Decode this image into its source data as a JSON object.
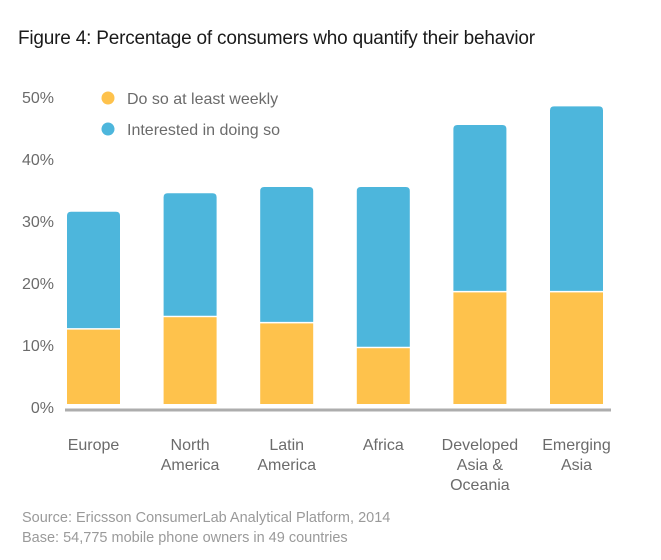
{
  "chart_data": {
    "type": "bar",
    "stacked": true,
    "title": "Figure 4: Percentage of consumers who quantify their behavior",
    "xlabel": "",
    "ylabel": "",
    "categories": [
      "Europe",
      "North America",
      "Latin America",
      "Africa",
      "Developed Asia & Oceania",
      "Emerging Asia"
    ],
    "category_label_lines": [
      [
        "Europe"
      ],
      [
        "North",
        "America"
      ],
      [
        "Latin",
        "America"
      ],
      [
        "Africa"
      ],
      [
        "Developed",
        "Asia &",
        "Oceania"
      ],
      [
        "Emerging",
        "Asia"
      ]
    ],
    "series": [
      {
        "name": "Do so at least weekly",
        "color": "#FEC24C",
        "values": [
          12,
          14,
          13,
          9,
          18,
          18
        ]
      },
      {
        "name": "Interested in doing so",
        "color": "#4DB6DC",
        "values": [
          19,
          20,
          22,
          26,
          27,
          30
        ]
      }
    ],
    "totals": [
      31,
      34,
      35,
      35,
      45,
      48
    ],
    "ylim": [
      0,
      50
    ],
    "yticks": [
      0,
      10,
      20,
      30,
      40,
      50
    ],
    "ytick_labels": [
      "0%",
      "10%",
      "20%",
      "30%",
      "40%",
      "50%"
    ],
    "grid": false,
    "legend_position": "top-left",
    "axis_color": "#ADADAD"
  },
  "footer": {
    "source": "Source: Ericsson ConsumerLab Analytical Platform, 2014",
    "base": "Base: 54,775 mobile phone owners in 49 countries"
  }
}
